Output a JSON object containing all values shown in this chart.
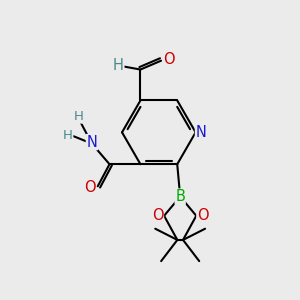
{
  "bg_color": "#ebebeb",
  "bond_color": "#000000",
  "bond_width": 1.5,
  "atom_colors": {
    "C": "#000000",
    "H": "#4a8a8a",
    "N": "#1a1acc",
    "O": "#cc0000",
    "B": "#00aa00"
  },
  "font_size": 10.5,
  "small_font_size": 9.5
}
